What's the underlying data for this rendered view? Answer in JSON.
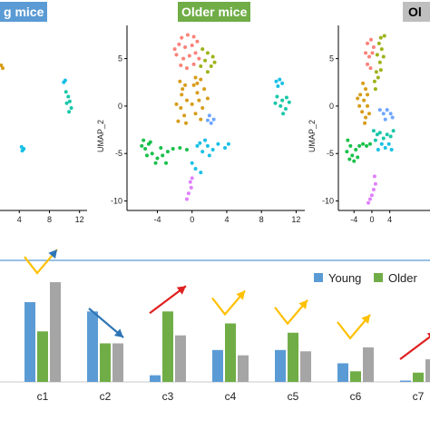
{
  "panels": {
    "young_label": "g mice",
    "older_label": "Older mice",
    "third_label": "Ol",
    "ylabel": "UMAP_2",
    "label_colors": {
      "young": "#5b9bd5",
      "older": "#70ad47",
      "third": "#bfbfbf"
    }
  },
  "cluster_colors": {
    "c1": "#f8766d",
    "c2": "#d39200",
    "c3": "#93aa00",
    "c4": "#00ba38",
    "c5": "#00c19f",
    "c6": "#00b9e3",
    "c7": "#619cff",
    "c8": "#db72fb"
  },
  "chart_data": [
    {
      "type": "scatter",
      "panel": "young",
      "ylabel": "",
      "xticks": [
        4,
        8,
        12
      ],
      "yticks": [],
      "xlim": [
        1.2,
        13
      ],
      "ylim": [
        -11,
        8.5
      ],
      "points": [
        {
          "x": 10.2,
          "y": 1.5,
          "c": "c5"
        },
        {
          "x": 10.5,
          "y": 1.0,
          "c": "c5"
        },
        {
          "x": 10.7,
          "y": 0.5,
          "c": "c5"
        },
        {
          "x": 10.3,
          "y": 0.3,
          "c": "c5"
        },
        {
          "x": 10.9,
          "y": -0.2,
          "c": "c5"
        },
        {
          "x": 10.6,
          "y": -0.6,
          "c": "c5"
        },
        {
          "x": 10.1,
          "y": 2.7,
          "c": "c6"
        },
        {
          "x": 9.9,
          "y": 2.5,
          "c": "c6"
        },
        {
          "x": 4.6,
          "y": -4.5,
          "c": "c6"
        },
        {
          "x": 4.4,
          "y": -4.7,
          "c": "c6"
        },
        {
          "x": 4.3,
          "y": -4.3,
          "c": "c6"
        },
        {
          "x": 1.8,
          "y": 4.0,
          "c": "c2"
        },
        {
          "x": 1.6,
          "y": 4.3,
          "c": "c2"
        }
      ]
    },
    {
      "type": "scatter",
      "panel": "older",
      "ylabel": "UMAP_2",
      "xticks": [
        -4,
        0,
        4,
        8,
        12
      ],
      "yticks": [
        5,
        0,
        -5,
        -10
      ],
      "xlim": [
        -7.5,
        13
      ],
      "ylim": [
        -11,
        8.5
      ],
      "points": [
        {
          "x": -1.2,
          "y": 7.2,
          "c": "c1"
        },
        {
          "x": -0.5,
          "y": 7.5,
          "c": "c1"
        },
        {
          "x": 0.2,
          "y": 7.3,
          "c": "c1"
        },
        {
          "x": -1.5,
          "y": 6.5,
          "c": "c1"
        },
        {
          "x": -0.8,
          "y": 6.2,
          "c": "c1"
        },
        {
          "x": 0.0,
          "y": 6.4,
          "c": "c1"
        },
        {
          "x": 0.6,
          "y": 6.8,
          "c": "c1"
        },
        {
          "x": -1.8,
          "y": 5.4,
          "c": "c1"
        },
        {
          "x": -1.0,
          "y": 5.0,
          "c": "c1"
        },
        {
          "x": -0.3,
          "y": 5.3,
          "c": "c1"
        },
        {
          "x": 0.4,
          "y": 5.6,
          "c": "c1"
        },
        {
          "x": -1.3,
          "y": 4.3,
          "c": "c1"
        },
        {
          "x": -0.6,
          "y": 4.0,
          "c": "c1"
        },
        {
          "x": 0.2,
          "y": 4.4,
          "c": "c1"
        },
        {
          "x": -2.0,
          "y": 6.0,
          "c": "c1"
        },
        {
          "x": 0.8,
          "y": 5.0,
          "c": "c1"
        },
        {
          "x": 1.2,
          "y": 6.0,
          "c": "c3"
        },
        {
          "x": 1.8,
          "y": 5.6,
          "c": "c3"
        },
        {
          "x": 2.4,
          "y": 5.2,
          "c": "c3"
        },
        {
          "x": 1.5,
          "y": 4.8,
          "c": "c3"
        },
        {
          "x": 2.2,
          "y": 4.2,
          "c": "c3"
        },
        {
          "x": 1.0,
          "y": 4.2,
          "c": "c3"
        },
        {
          "x": 1.8,
          "y": 3.6,
          "c": "c3"
        },
        {
          "x": 2.6,
          "y": 4.6,
          "c": "c3"
        },
        {
          "x": -1.4,
          "y": 2.6,
          "c": "c2"
        },
        {
          "x": -0.8,
          "y": 2.2,
          "c": "c2"
        },
        {
          "x": -1.2,
          "y": 1.2,
          "c": "c2"
        },
        {
          "x": -0.6,
          "y": 0.6,
          "c": "c2"
        },
        {
          "x": -1.3,
          "y": -0.2,
          "c": "c2"
        },
        {
          "x": -0.9,
          "y": -1.0,
          "c": "c2"
        },
        {
          "x": -1.6,
          "y": -1.6,
          "c": "c2"
        },
        {
          "x": -0.7,
          "y": -1.8,
          "c": "c2"
        },
        {
          "x": -1.1,
          "y": 1.8,
          "c": "c2"
        },
        {
          "x": -1.8,
          "y": 0.2,
          "c": "c2"
        },
        {
          "x": 0.2,
          "y": 2.2,
          "c": "c2"
        },
        {
          "x": 0.6,
          "y": 1.4,
          "c": "c2"
        },
        {
          "x": 1.0,
          "y": 2.8,
          "c": "c2"
        },
        {
          "x": 0.4,
          "y": 3.0,
          "c": "c2"
        },
        {
          "x": 1.4,
          "y": 1.8,
          "c": "c2"
        },
        {
          "x": 0.8,
          "y": 0.6,
          "c": "c2"
        },
        {
          "x": 1.2,
          "y": -0.2,
          "c": "c2"
        },
        {
          "x": 0.4,
          "y": -0.8,
          "c": "c2"
        },
        {
          "x": 1.0,
          "y": -1.4,
          "c": "c2"
        },
        {
          "x": 0.0,
          "y": 0.2,
          "c": "c2"
        },
        {
          "x": 1.8,
          "y": 0.8,
          "c": "c2"
        },
        {
          "x": 0.6,
          "y": 2.4,
          "c": "c2"
        },
        {
          "x": 2.0,
          "y": -1.0,
          "c": "c7"
        },
        {
          "x": 2.5,
          "y": -1.4,
          "c": "c7"
        },
        {
          "x": 2.2,
          "y": -1.8,
          "c": "c7"
        },
        {
          "x": 1.8,
          "y": -1.5,
          "c": "c7"
        },
        {
          "x": -5.6,
          "y": -3.6,
          "c": "c4"
        },
        {
          "x": -5.0,
          "y": -4.0,
          "c": "c4"
        },
        {
          "x": -5.4,
          "y": -4.5,
          "c": "c4"
        },
        {
          "x": -4.6,
          "y": -5.0,
          "c": "c4"
        },
        {
          "x": -4.0,
          "y": -5.5,
          "c": "c4"
        },
        {
          "x": -3.4,
          "y": -5.2,
          "c": "c4"
        },
        {
          "x": -2.8,
          "y": -4.8,
          "c": "c4"
        },
        {
          "x": -4.8,
          "y": -3.8,
          "c": "c4"
        },
        {
          "x": -3.6,
          "y": -4.4,
          "c": "c4"
        },
        {
          "x": -5.2,
          "y": -5.2,
          "c": "c4"
        },
        {
          "x": -2.2,
          "y": -4.5,
          "c": "c4"
        },
        {
          "x": -1.4,
          "y": -4.4,
          "c": "c4"
        },
        {
          "x": -0.6,
          "y": -4.6,
          "c": "c4"
        },
        {
          "x": -4.2,
          "y": -6.0,
          "c": "c4"
        },
        {
          "x": -3.0,
          "y": -6.0,
          "c": "c4"
        },
        {
          "x": -5.8,
          "y": -4.2,
          "c": "c4"
        },
        {
          "x": 0.6,
          "y": -4.2,
          "c": "c6"
        },
        {
          "x": 1.2,
          "y": -4.8,
          "c": "c6"
        },
        {
          "x": 1.8,
          "y": -4.2,
          "c": "c6"
        },
        {
          "x": 2.4,
          "y": -4.6,
          "c": "c6"
        },
        {
          "x": 1.5,
          "y": -3.6,
          "c": "c6"
        },
        {
          "x": 3.0,
          "y": -4.0,
          "c": "c6"
        },
        {
          "x": 3.8,
          "y": -4.4,
          "c": "c6"
        },
        {
          "x": 4.2,
          "y": -4.0,
          "c": "c6"
        },
        {
          "x": 2.0,
          "y": -5.2,
          "c": "c6"
        },
        {
          "x": 0.9,
          "y": -3.9,
          "c": "c6"
        },
        {
          "x": 0.0,
          "y": -6.0,
          "c": "c6"
        },
        {
          "x": 0.4,
          "y": -6.6,
          "c": "c6"
        },
        {
          "x": 1.0,
          "y": -7.0,
          "c": "c6"
        },
        {
          "x": 0.0,
          "y": -7.6,
          "c": "c8"
        },
        {
          "x": -0.2,
          "y": -8.0,
          "c": "c8"
        },
        {
          "x": -0.1,
          "y": -8.6,
          "c": "c8"
        },
        {
          "x": -0.4,
          "y": -9.2,
          "c": "c8"
        },
        {
          "x": -0.6,
          "y": -9.8,
          "c": "c8"
        },
        {
          "x": 9.8,
          "y": 1.0,
          "c": "c5"
        },
        {
          "x": 10.4,
          "y": 0.6,
          "c": "c5"
        },
        {
          "x": 10.9,
          "y": 0.9,
          "c": "c5"
        },
        {
          "x": 10.2,
          "y": 0.0,
          "c": "c5"
        },
        {
          "x": 10.8,
          "y": -0.3,
          "c": "c5"
        },
        {
          "x": 11.2,
          "y": 0.4,
          "c": "c5"
        },
        {
          "x": 9.6,
          "y": 0.3,
          "c": "c5"
        },
        {
          "x": 10.5,
          "y": -0.8,
          "c": "c5"
        },
        {
          "x": 9.7,
          "y": 2.6,
          "c": "c6"
        },
        {
          "x": 10.1,
          "y": 2.8,
          "c": "c6"
        },
        {
          "x": 10.4,
          "y": 2.4,
          "c": "c6"
        },
        {
          "x": 9.9,
          "y": 2.1,
          "c": "c6"
        }
      ]
    },
    {
      "type": "scatter",
      "panel": "third",
      "ylabel": "UMAP_2",
      "xticks": [
        -4,
        0,
        4
      ],
      "yticks": [
        5,
        0,
        -5,
        -10
      ],
      "xlim": [
        -7.5,
        13
      ],
      "ylim": [
        -11,
        8.5
      ],
      "points": [
        {
          "x": -1.0,
          "y": 6.6,
          "c": "c1"
        },
        {
          "x": -0.2,
          "y": 7.0,
          "c": "c1"
        },
        {
          "x": 0.4,
          "y": 6.2,
          "c": "c1"
        },
        {
          "x": -1.4,
          "y": 5.6,
          "c": "c1"
        },
        {
          "x": -0.6,
          "y": 5.2,
          "c": "c1"
        },
        {
          "x": 0.1,
          "y": 5.6,
          "c": "c1"
        },
        {
          "x": -1.0,
          "y": 4.4,
          "c": "c1"
        },
        {
          "x": -0.3,
          "y": 4.0,
          "c": "c1"
        },
        {
          "x": 1.6,
          "y": 6.6,
          "c": "c3"
        },
        {
          "x": 2.2,
          "y": 6.0,
          "c": "c3"
        },
        {
          "x": 2.0,
          "y": 7.2,
          "c": "c3"
        },
        {
          "x": 1.2,
          "y": 5.4,
          "c": "c3"
        },
        {
          "x": 2.6,
          "y": 5.2,
          "c": "c3"
        },
        {
          "x": 1.8,
          "y": 4.6,
          "c": "c3"
        },
        {
          "x": 2.8,
          "y": 7.4,
          "c": "c3"
        },
        {
          "x": 1.0,
          "y": 3.6,
          "c": "c3"
        },
        {
          "x": 0.6,
          "y": 2.6,
          "c": "c3"
        },
        {
          "x": 1.4,
          "y": 3.0,
          "c": "c3"
        },
        {
          "x": 0.8,
          "y": 1.8,
          "c": "c3"
        },
        {
          "x": 2.0,
          "y": 3.8,
          "c": "c3"
        },
        {
          "x": -2.0,
          "y": 2.4,
          "c": "c2"
        },
        {
          "x": -1.4,
          "y": 1.8,
          "c": "c2"
        },
        {
          "x": -2.6,
          "y": 1.2,
          "c": "c2"
        },
        {
          "x": -1.8,
          "y": 0.6,
          "c": "c2"
        },
        {
          "x": -1.0,
          "y": 0.0,
          "c": "c2"
        },
        {
          "x": -2.2,
          "y": -0.6,
          "c": "c2"
        },
        {
          "x": -1.4,
          "y": -1.2,
          "c": "c2"
        },
        {
          "x": -0.6,
          "y": -0.8,
          "c": "c2"
        },
        {
          "x": -2.8,
          "y": 0.0,
          "c": "c2"
        },
        {
          "x": -1.0,
          "y": 1.2,
          "c": "c2"
        },
        {
          "x": -3.2,
          "y": 0.8,
          "c": "c2"
        },
        {
          "x": -1.6,
          "y": -1.8,
          "c": "c2"
        },
        {
          "x": 1.8,
          "y": -0.4,
          "c": "c7"
        },
        {
          "x": 2.6,
          "y": -0.8,
          "c": "c7"
        },
        {
          "x": 3.4,
          "y": -0.4,
          "c": "c7"
        },
        {
          "x": 4.2,
          "y": -0.8,
          "c": "c7"
        },
        {
          "x": 4.6,
          "y": -1.2,
          "c": "c7"
        },
        {
          "x": 3.0,
          "y": -1.4,
          "c": "c7"
        },
        {
          "x": -5.4,
          "y": -3.6,
          "c": "c4"
        },
        {
          "x": -4.8,
          "y": -4.2,
          "c": "c4"
        },
        {
          "x": -5.6,
          "y": -4.8,
          "c": "c4"
        },
        {
          "x": -4.4,
          "y": -5.2,
          "c": "c4"
        },
        {
          "x": -3.6,
          "y": -4.6,
          "c": "c4"
        },
        {
          "x": -2.8,
          "y": -4.2,
          "c": "c4"
        },
        {
          "x": -2.0,
          "y": -4.0,
          "c": "c4"
        },
        {
          "x": -1.2,
          "y": -4.2,
          "c": "c4"
        },
        {
          "x": -0.4,
          "y": -4.0,
          "c": "c4"
        },
        {
          "x": -4.0,
          "y": -5.8,
          "c": "c4"
        },
        {
          "x": -5.0,
          "y": -5.6,
          "c": "c4"
        },
        {
          "x": -3.2,
          "y": -5.4,
          "c": "c4"
        },
        {
          "x": 0.4,
          "y": -2.6,
          "c": "c5"
        },
        {
          "x": 1.2,
          "y": -3.0,
          "c": "c5"
        },
        {
          "x": 0.8,
          "y": -3.6,
          "c": "c5"
        },
        {
          "x": 1.8,
          "y": -2.8,
          "c": "c5"
        },
        {
          "x": 2.6,
          "y": -3.4,
          "c": "c5"
        },
        {
          "x": 3.4,
          "y": -3.0,
          "c": "c5"
        },
        {
          "x": 4.2,
          "y": -3.2,
          "c": "c5"
        },
        {
          "x": 4.8,
          "y": -2.6,
          "c": "c5"
        },
        {
          "x": 2.2,
          "y": -4.0,
          "c": "c6"
        },
        {
          "x": 3.0,
          "y": -4.4,
          "c": "c6"
        },
        {
          "x": 3.8,
          "y": -4.0,
          "c": "c6"
        },
        {
          "x": 4.4,
          "y": -4.6,
          "c": "c6"
        },
        {
          "x": 1.4,
          "y": -4.6,
          "c": "c6"
        },
        {
          "x": 0.6,
          "y": -7.4,
          "c": "c8"
        },
        {
          "x": 0.8,
          "y": -8.2,
          "c": "c8"
        },
        {
          "x": 0.4,
          "y": -8.8,
          "c": "c8"
        },
        {
          "x": 0.0,
          "y": -9.4,
          "c": "c8"
        },
        {
          "x": -0.4,
          "y": -9.8,
          "c": "c8"
        },
        {
          "x": -0.8,
          "y": -10.2,
          "c": "c8"
        }
      ]
    },
    {
      "type": "bar",
      "panel": "bar",
      "categories": [
        "",
        "c1",
        "c2",
        "c3",
        "c4",
        "c5",
        "c6",
        "c7"
      ],
      "series": [
        {
          "name": "Young",
          "color": "#5b9bd5",
          "values": [
            0,
            60,
            53,
            5,
            24,
            24,
            14,
            1
          ]
        },
        {
          "name": "Older",
          "color": "#70ad47",
          "values": [
            0,
            38,
            29,
            53,
            44,
            37,
            8,
            7
          ]
        },
        {
          "name": "",
          "color": "#a5a5a5",
          "values": [
            45,
            75,
            29,
            35,
            20,
            23,
            26,
            17
          ]
        }
      ],
      "ylim": [
        0,
        88
      ],
      "legend": "top-right",
      "arrows": [
        {
          "cat": "",
          "type": "down",
          "color": "#2e75b6"
        },
        {
          "cat": "c1",
          "type": "check",
          "color": "#ffc000",
          "end_color": "#2e75b6"
        },
        {
          "cat": "c2",
          "type": "down",
          "color": "#2e75b6"
        },
        {
          "cat": "c3",
          "type": "up",
          "color": "#e02020"
        },
        {
          "cat": "c4",
          "type": "check",
          "color": "#ffc000"
        },
        {
          "cat": "c5",
          "type": "check",
          "color": "#ffc000"
        },
        {
          "cat": "c6",
          "type": "check",
          "color": "#ffc000"
        },
        {
          "cat": "c7",
          "type": "up",
          "color": "#e02020"
        }
      ]
    }
  ]
}
